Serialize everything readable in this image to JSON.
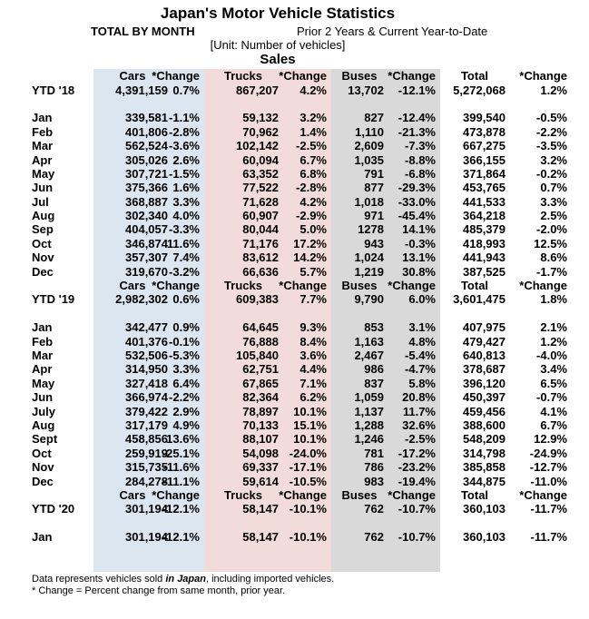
{
  "page": {
    "title": "Japan's Motor Vehicle Statistics",
    "subtitle_left": "TOTAL BY MONTH",
    "subtitle_right": "Prior 2 Years & Current Year-to-Date",
    "unit_note": "[Unit: Number of vehicles]",
    "table_title": "Sales"
  },
  "columns": [
    "Cars",
    "*Change",
    "Trucks",
    "*Change",
    "Buses",
    "*Change",
    "Total",
    "*Change"
  ],
  "sections": [
    {
      "ytd_label": "YTD '18",
      "ytd_values": [
        "4,391,159",
        "0.7%",
        "867,207",
        "4.2%",
        "13,702",
        "-12.1%",
        "5,272,068",
        "1.2%"
      ],
      "rows": [
        [
          "Jan",
          "339,581",
          "-1.1%",
          "59,132",
          "3.2%",
          "827",
          "-12.4%",
          "399,540",
          "-0.5%"
        ],
        [
          "Feb",
          "401,806",
          "-2.8%",
          "70,962",
          "1.4%",
          "1,110",
          "-21.3%",
          "473,878",
          "-2.2%"
        ],
        [
          "Mar",
          "562,524",
          "-3.6%",
          "102,142",
          "-2.5%",
          "2,609",
          "-7.3%",
          "667,275",
          "-3.5%"
        ],
        [
          "Apr",
          "305,026",
          "2.6%",
          "60,094",
          "6.7%",
          "1,035",
          "-8.8%",
          "366,155",
          "3.2%"
        ],
        [
          "May",
          "307,721",
          "-1.5%",
          "63,352",
          "6.8%",
          "791",
          "-6.8%",
          "371,864",
          "-0.2%"
        ],
        [
          "Jun",
          "375,366",
          "1.6%",
          "77,522",
          "-2.8%",
          "877",
          "-29.3%",
          "453,765",
          "0.7%"
        ],
        [
          "Jul",
          "368,887",
          "3.3%",
          "71,628",
          "4.2%",
          "1,018",
          "-33.0%",
          "441,533",
          "3.3%"
        ],
        [
          "Aug",
          "302,340",
          "4.0%",
          "60,907",
          "-2.9%",
          "971",
          "-45.4%",
          "364,218",
          "2.5%"
        ],
        [
          "Sep",
          "404,057",
          "-3.3%",
          "80,044",
          "5.0%",
          "1278",
          "14.1%",
          "485,379",
          "-2.0%"
        ],
        [
          "Oct",
          "346,874",
          "11.6%",
          "71,176",
          "17.2%",
          "943",
          "-0.3%",
          "418,993",
          "12.5%"
        ],
        [
          "Nov",
          "357,307",
          "7.4%",
          "83,612",
          "14.2%",
          "1,024",
          "13.1%",
          "441,943",
          "8.6%"
        ],
        [
          "Dec",
          "319,670",
          "-3.2%",
          "66,636",
          "5.7%",
          "1,219",
          "30.8%",
          "387,525",
          "-1.7%"
        ]
      ],
      "trailing_blank_rows": 0
    },
    {
      "ytd_label": "YTD '19",
      "ytd_values": [
        "2,982,302",
        "0.6%",
        "609,383",
        "7.7%",
        "9,790",
        "6.0%",
        "3,601,475",
        "1.8%"
      ],
      "rows": [
        [
          "Jan",
          "342,477",
          "0.9%",
          "64,645",
          "9.3%",
          "853",
          "3.1%",
          "407,975",
          "2.1%"
        ],
        [
          "Feb",
          "401,376",
          "-0.1%",
          "76,888",
          "8.4%",
          "1,163",
          "4.8%",
          "479,427",
          "1.2%"
        ],
        [
          "Mar",
          "532,506",
          "-5.3%",
          "105,840",
          "3.6%",
          "2,467",
          "-5.4%",
          "640,813",
          "-4.0%"
        ],
        [
          "Apr",
          "314,950",
          "3.3%",
          "62,751",
          "4.4%",
          "986",
          "-4.7%",
          "378,687",
          "3.4%"
        ],
        [
          "May",
          "327,418",
          "6.4%",
          "67,865",
          "7.1%",
          "837",
          "5.8%",
          "396,120",
          "6.5%"
        ],
        [
          "Jun",
          "366,974",
          "-2.2%",
          "82,364",
          "6.2%",
          "1,059",
          "20.8%",
          "450,397",
          "-0.7%"
        ],
        [
          "July",
          "379,422",
          "2.9%",
          "78,897",
          "10.1%",
          "1,137",
          "11.7%",
          "459,456",
          "4.1%"
        ],
        [
          "Aug",
          "317,179",
          "4.9%",
          "70,133",
          "15.1%",
          "1,288",
          "32.6%",
          "388,600",
          "6.7%"
        ],
        [
          "Sept",
          "458,856",
          "13.6%",
          "88,107",
          "10.1%",
          "1,246",
          "-2.5%",
          "548,209",
          "12.9%"
        ],
        [
          "Oct",
          "259,919",
          "-25.1%",
          "54,098",
          "-24.0%",
          "781",
          "-17.2%",
          "314,798",
          "-24.9%"
        ],
        [
          "Nov",
          "315,735",
          "-11.6%",
          "69,337",
          "-17.1%",
          "786",
          "-23.2%",
          "385,858",
          "-12.7%"
        ],
        [
          "Dec",
          "284,278",
          "-11.1%",
          "59,614",
          "-10.5%",
          "983",
          "-19.4%",
          "344,875",
          "-11.0%"
        ]
      ],
      "trailing_blank_rows": 0
    },
    {
      "ytd_label": "YTD '20",
      "ytd_values": [
        "301,194",
        "-12.1%",
        "58,147",
        "-10.1%",
        "762",
        "-10.7%",
        "360,103",
        "-11.7%"
      ],
      "rows": [
        [
          "Jan",
          "301,194",
          "-12.1%",
          "58,147",
          "-10.1%",
          "762",
          "-10.7%",
          "360,103",
          "-11.7%"
        ]
      ],
      "trailing_blank_rows": 2
    }
  ],
  "footnotes": {
    "line1_pre": "Data represents vehicles sold ",
    "line1_emphasis": "in Japan",
    "line1_post": ", including imported vehicles.",
    "line2": "* Change = Percent change from same month, prior year."
  },
  "colors": {
    "cars_band": "#dce6f1",
    "trucks_band": "#f2dcdb",
    "buses_band": "#d9d9d9",
    "text": "#000000"
  }
}
